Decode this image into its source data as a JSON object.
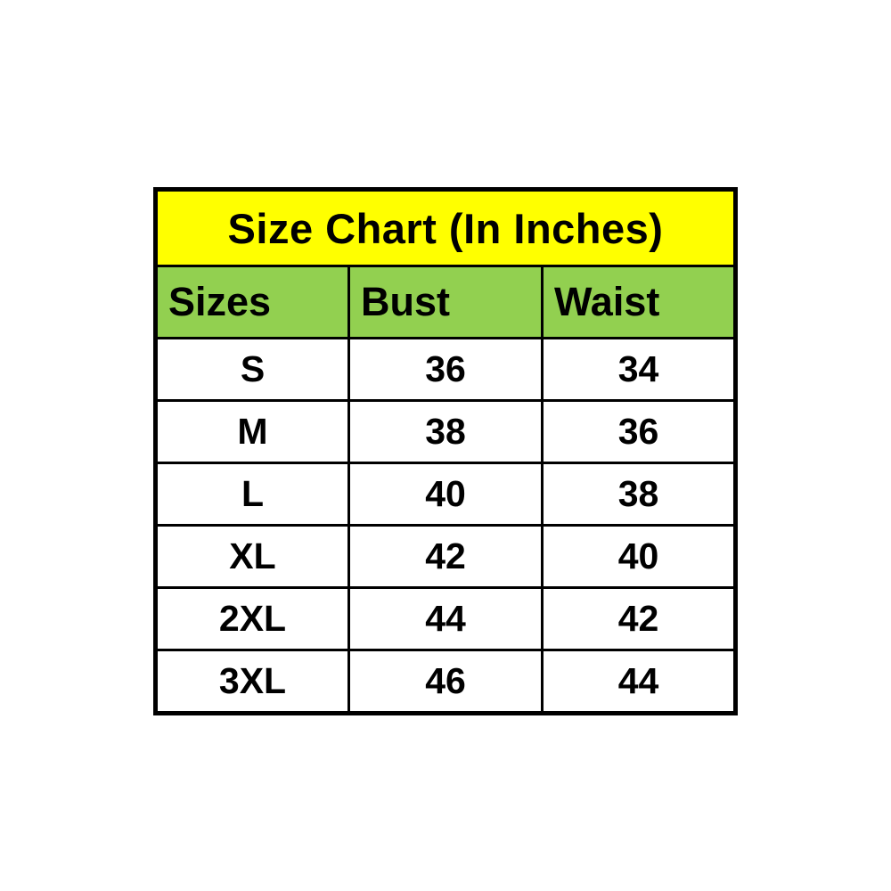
{
  "table": {
    "title": "Size Chart (In Inches)",
    "columns": [
      "Sizes",
      "Bust",
      "Waist"
    ],
    "rows": [
      [
        "S",
        "36",
        "34"
      ],
      [
        "M",
        "38",
        "36"
      ],
      [
        "L",
        "40",
        "38"
      ],
      [
        "XL",
        "42",
        "40"
      ],
      [
        "2XL",
        "44",
        "42"
      ],
      [
        "3XL",
        "46",
        "44"
      ]
    ],
    "colors": {
      "page_bg": "#ffffff",
      "title_bg": "#ffff00",
      "header_bg": "#92d050",
      "row_bg": "#ffffff",
      "border": "#000000",
      "text": "#000000"
    }
  },
  "chart_data": {
    "type": "table",
    "title": "Size Chart (In Inches)",
    "columns": [
      "Sizes",
      "Bust",
      "Waist"
    ],
    "rows": [
      {
        "size": "S",
        "bust": 36,
        "waist": 34
      },
      {
        "size": "M",
        "bust": 38,
        "waist": 36
      },
      {
        "size": "L",
        "bust": 40,
        "waist": 38
      },
      {
        "size": "XL",
        "bust": 42,
        "waist": 40
      },
      {
        "size": "2XL",
        "bust": 44,
        "waist": 42
      },
      {
        "size": "3XL",
        "bust": 46,
        "waist": 44
      }
    ],
    "units": "inches",
    "layout_hints": {
      "title_row_bg": "#ffff00",
      "header_row_bg": "#92d050",
      "title_align": "center",
      "header_align": "left",
      "data_align": "center"
    }
  }
}
